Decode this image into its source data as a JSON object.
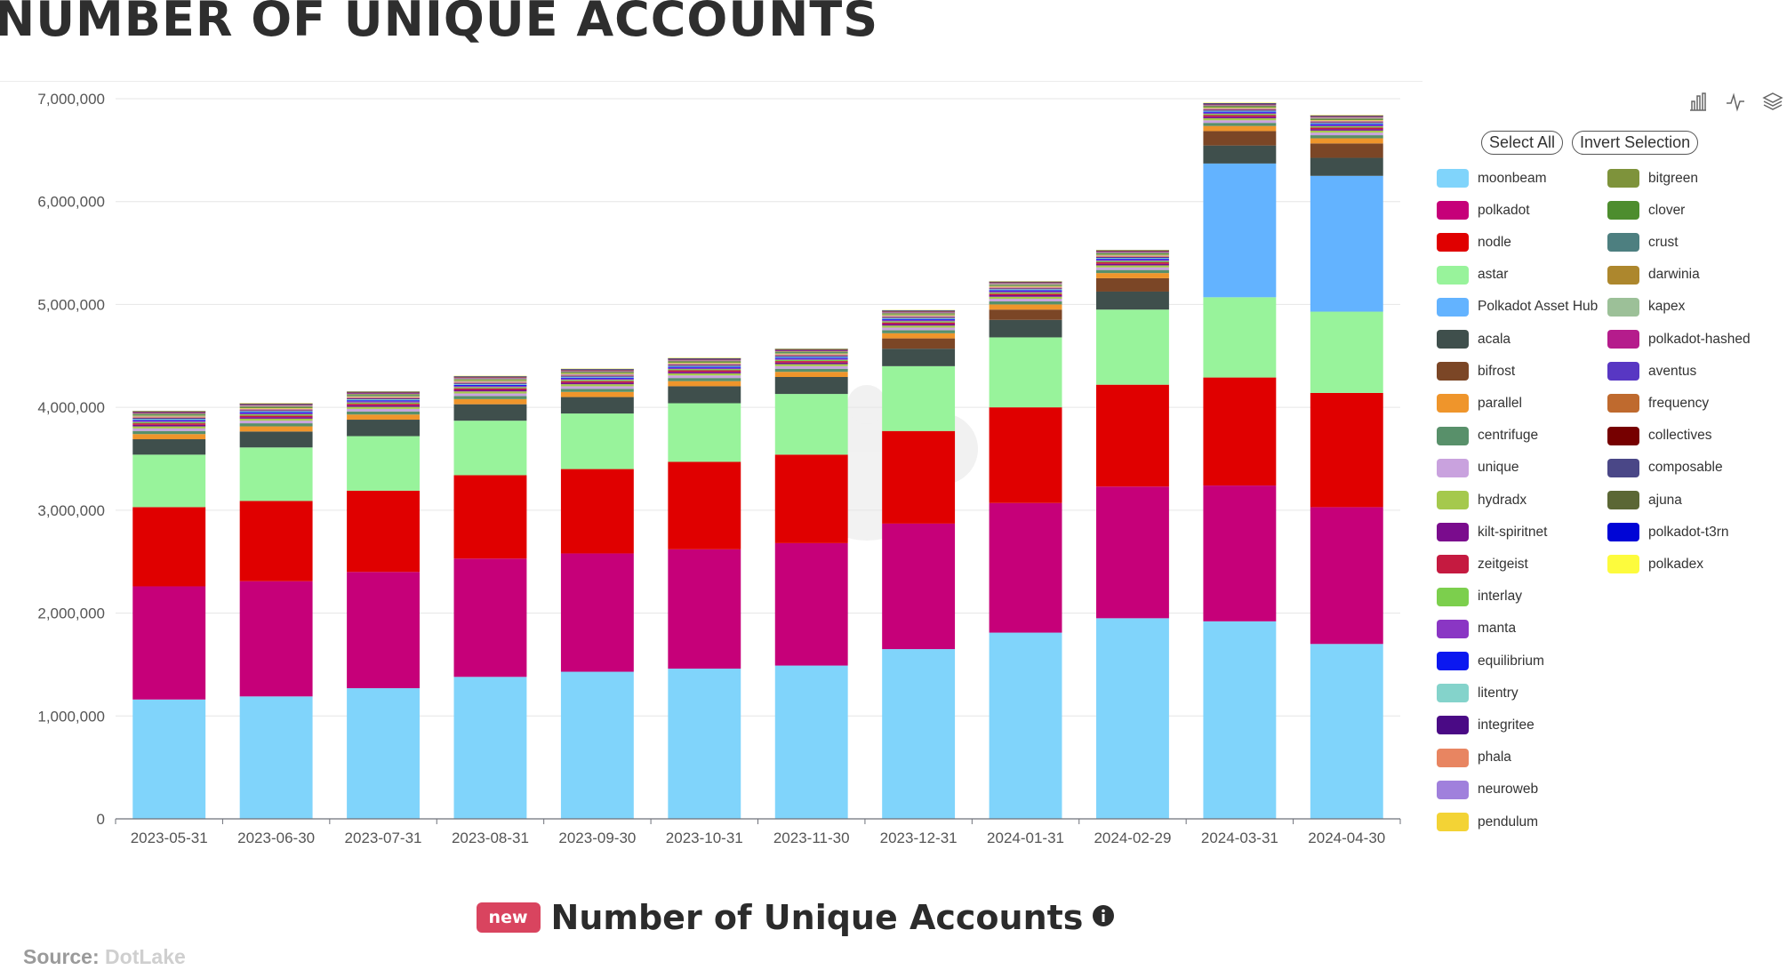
{
  "page": {
    "title": "NUMBER OF UNIQUE ACCOUNTS",
    "footer_badge": "new",
    "footer_title": "Number of Unique Accounts",
    "source_label": "Source: ",
    "source_name": "DotLake"
  },
  "toolbar": {
    "tools": [
      "bar-chart-icon",
      "line-chart-icon",
      "stack-icon"
    ]
  },
  "legend": {
    "select_all": "Select All",
    "invert_selection": "Invert Selection"
  },
  "chart_data": {
    "type": "bar",
    "stacked": true,
    "title": "",
    "xlabel": "",
    "ylabel": "",
    "ylim": [
      0,
      7000000
    ],
    "yticks": [
      "0",
      "1,000,000",
      "2,000,000",
      "3,000,000",
      "4,000,000",
      "5,000,000",
      "6,000,000",
      "7,000,000"
    ],
    "grid": true,
    "legend_position": "right",
    "categories": [
      "2023-05-31",
      "2023-06-30",
      "2023-07-31",
      "2023-08-31",
      "2023-09-30",
      "2023-10-31",
      "2023-11-30",
      "2023-12-31",
      "2024-01-31",
      "2024-02-29",
      "2024-03-31",
      "2024-04-30"
    ],
    "series": [
      {
        "name": "moonbeam",
        "color": "#80d4fb",
        "values": [
          1160000,
          1190000,
          1270000,
          1380000,
          1430000,
          1460000,
          1490000,
          1650000,
          1810000,
          1950000,
          1920000,
          1700000
        ]
      },
      {
        "name": "polkadot",
        "color": "#c60079",
        "values": [
          1100000,
          1120000,
          1130000,
          1150000,
          1150000,
          1160000,
          1190000,
          1220000,
          1260000,
          1280000,
          1320000,
          1330000
        ]
      },
      {
        "name": "nodle",
        "color": "#e00000",
        "values": [
          770000,
          780000,
          790000,
          810000,
          820000,
          850000,
          860000,
          900000,
          930000,
          990000,
          1050000,
          1110000
        ]
      },
      {
        "name": "astar",
        "color": "#98f39b",
        "values": [
          510000,
          520000,
          530000,
          530000,
          540000,
          570000,
          590000,
          630000,
          680000,
          730000,
          780000,
          790000
        ]
      },
      {
        "name": "Polkadot Asset Hub",
        "color": "#63b3ff",
        "values": [
          0,
          0,
          0,
          0,
          0,
          0,
          0,
          0,
          0,
          0,
          1300000,
          1320000
        ]
      },
      {
        "name": "acala",
        "color": "#3f4f4c",
        "values": [
          150000,
          155000,
          160000,
          160000,
          160000,
          165000,
          165000,
          170000,
          170000,
          175000,
          175000,
          175000
        ]
      },
      {
        "name": "bifrost",
        "color": "#7b4626",
        "values": [
          0,
          0,
          0,
          0,
          0,
          0,
          0,
          100000,
          100000,
          130000,
          140000,
          140000
        ]
      },
      {
        "name": "parallel",
        "color": "#ef952b",
        "values": [
          50000,
          50000,
          50000,
          50000,
          50000,
          50000,
          50000,
          50000,
          50000,
          50000,
          50000,
          50000
        ]
      },
      {
        "name": "centrifuge",
        "color": "#58906a",
        "values": [
          30000,
          30000,
          30000,
          30000,
          30000,
          30000,
          30000,
          30000,
          30000,
          30000,
          30000,
          30000
        ]
      },
      {
        "name": "unique",
        "color": "#c9a2de",
        "values": [
          25000,
          25000,
          25000,
          25000,
          25000,
          25000,
          25000,
          25000,
          25000,
          25000,
          25000,
          25000
        ]
      },
      {
        "name": "hydradx",
        "color": "#a5c94d",
        "values": [
          20000,
          20000,
          20000,
          20000,
          20000,
          20000,
          20000,
          20000,
          20000,
          20000,
          20000,
          20000
        ]
      },
      {
        "name": "kilt-spiritnet",
        "color": "#7a0c8d",
        "values": [
          15000,
          15000,
          15000,
          15000,
          15000,
          15000,
          15000,
          15000,
          15000,
          15000,
          15000,
          15000
        ]
      },
      {
        "name": "zeitgeist",
        "color": "#c51a40",
        "values": [
          15000,
          15000,
          15000,
          15000,
          15000,
          15000,
          15000,
          15000,
          15000,
          15000,
          15000,
          15000
        ]
      },
      {
        "name": "interlay",
        "color": "#7ccf4d",
        "values": [
          12000,
          12000,
          12000,
          12000,
          12000,
          12000,
          12000,
          12000,
          12000,
          12000,
          12000,
          12000
        ]
      },
      {
        "name": "manta",
        "color": "#8a36c4",
        "values": [
          12000,
          12000,
          12000,
          12000,
          12000,
          12000,
          12000,
          12000,
          12000,
          12000,
          12000,
          12000
        ]
      },
      {
        "name": "equilibrium",
        "color": "#0b18f0",
        "values": [
          10000,
          10000,
          10000,
          10000,
          10000,
          10000,
          10000,
          10000,
          10000,
          10000,
          10000,
          10000
        ]
      },
      {
        "name": "litentry",
        "color": "#84d3cb",
        "values": [
          10000,
          10000,
          10000,
          10000,
          10000,
          10000,
          10000,
          10000,
          10000,
          10000,
          10000,
          10000
        ]
      },
      {
        "name": "integritee",
        "color": "#4a0a85",
        "values": [
          8000,
          8000,
          8000,
          8000,
          8000,
          8000,
          8000,
          8000,
          8000,
          8000,
          8000,
          8000
        ]
      },
      {
        "name": "phala",
        "color": "#e88561",
        "values": [
          8000,
          8000,
          8000,
          8000,
          8000,
          8000,
          8000,
          8000,
          8000,
          8000,
          8000,
          8000
        ]
      },
      {
        "name": "neuroweb",
        "color": "#a080dc",
        "values": [
          6000,
          6000,
          6000,
          6000,
          6000,
          6000,
          6000,
          6000,
          6000,
          6000,
          6000,
          6000
        ]
      },
      {
        "name": "pendulum",
        "color": "#f3d335",
        "values": [
          6000,
          6000,
          6000,
          6000,
          6000,
          6000,
          6000,
          6000,
          6000,
          6000,
          6000,
          6000
        ]
      },
      {
        "name": "bitgreen",
        "color": "#7e933b",
        "values": [
          5000,
          5000,
          5000,
          5000,
          5000,
          5000,
          5000,
          5000,
          5000,
          5000,
          5000,
          5000
        ]
      },
      {
        "name": "clover",
        "color": "#4d8d2e",
        "values": [
          5000,
          5000,
          5000,
          5000,
          5000,
          5000,
          5000,
          5000,
          5000,
          5000,
          5000,
          5000
        ]
      },
      {
        "name": "crust",
        "color": "#4d7f80",
        "values": [
          5000,
          5000,
          5000,
          5000,
          5000,
          5000,
          5000,
          5000,
          5000,
          5000,
          5000,
          5000
        ]
      },
      {
        "name": "darwinia",
        "color": "#ad872d",
        "values": [
          5000,
          5000,
          5000,
          5000,
          5000,
          5000,
          5000,
          5000,
          5000,
          5000,
          5000,
          5000
        ]
      },
      {
        "name": "kapex",
        "color": "#9cc098",
        "values": [
          4000,
          4000,
          4000,
          4000,
          4000,
          4000,
          4000,
          4000,
          4000,
          4000,
          4000,
          4000
        ]
      },
      {
        "name": "polkadot-hashed",
        "color": "#b51c8c",
        "values": [
          4000,
          4000,
          4000,
          4000,
          4000,
          4000,
          4000,
          4000,
          4000,
          4000,
          4000,
          4000
        ]
      },
      {
        "name": "aventus",
        "color": "#5837c3",
        "values": [
          4000,
          4000,
          4000,
          4000,
          4000,
          4000,
          4000,
          4000,
          4000,
          4000,
          4000,
          4000
        ]
      },
      {
        "name": "frequency",
        "color": "#bf6a2e",
        "values": [
          4000,
          4000,
          4000,
          4000,
          4000,
          4000,
          4000,
          4000,
          4000,
          4000,
          4000,
          4000
        ]
      },
      {
        "name": "collectives",
        "color": "#760000",
        "values": [
          3000,
          3000,
          3000,
          3000,
          3000,
          3000,
          3000,
          3000,
          3000,
          3000,
          3000,
          3000
        ]
      },
      {
        "name": "composable",
        "color": "#4a4787",
        "values": [
          3000,
          3000,
          3000,
          3000,
          3000,
          3000,
          3000,
          3000,
          3000,
          3000,
          3000,
          3000
        ]
      },
      {
        "name": "ajuna",
        "color": "#5b6735",
        "values": [
          3000,
          3000,
          3000,
          3000,
          3000,
          3000,
          3000,
          3000,
          3000,
          3000,
          3000,
          3000
        ]
      },
      {
        "name": "polkadot-t3rn",
        "color": "#0005d6",
        "values": [
          2000,
          2000,
          2000,
          2000,
          2000,
          2000,
          2000,
          2000,
          2000,
          2000,
          2000,
          2000
        ]
      },
      {
        "name": "polkadex",
        "color": "#fdfb3d",
        "values": [
          2000,
          2000,
          2000,
          2000,
          2000,
          2000,
          2000,
          2000,
          2000,
          2000,
          2000,
          2000
        ]
      }
    ]
  }
}
